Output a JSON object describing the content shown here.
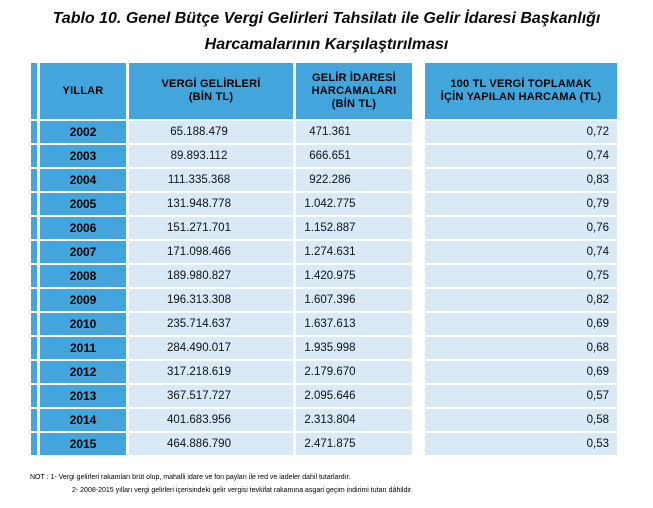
{
  "title": {
    "line1": "Tablo 10. Genel Bütçe Vergi Gelirleri Tahsilatı ile Gelir İdaresi Başkanlığı",
    "line2": "Harcamalarının Karşılaştırılması"
  },
  "table": {
    "headers": [
      "YILLAR",
      "VERGİ GELİRLERİ\n(BİN TL)",
      "GELİR İDARESİ\nHARCAMALARI\n(BİN TL)",
      "100  TL VERGİ TOPLAMAK\nİÇİN YAPILAN HARCAMA (TL)"
    ],
    "rows": [
      {
        "year": "2002",
        "vergi_gelirleri": "65.188.479",
        "gib_harcamalari": "471.361",
        "harcama_100_tl": "0,72"
      },
      {
        "year": "2003",
        "vergi_gelirleri": "89.893.112",
        "gib_harcamalari": "666.651",
        "harcama_100_tl": "0,74"
      },
      {
        "year": "2004",
        "vergi_gelirleri": "111.335.368",
        "gib_harcamalari": "922.286",
        "harcama_100_tl": "0,83"
      },
      {
        "year": "2005",
        "vergi_gelirleri": "131.948.778",
        "gib_harcamalari": "1.042.775",
        "harcama_100_tl": "0,79"
      },
      {
        "year": "2006",
        "vergi_gelirleri": "151.271.701",
        "gib_harcamalari": "1.152.887",
        "harcama_100_tl": "0,76"
      },
      {
        "year": "2007",
        "vergi_gelirleri": "171.098.466",
        "gib_harcamalari": "1.274.631",
        "harcama_100_tl": "0,74"
      },
      {
        "year": "2008",
        "vergi_gelirleri": "189.980.827",
        "gib_harcamalari": "1.420.975",
        "harcama_100_tl": "0,75"
      },
      {
        "year": "2009",
        "vergi_gelirleri": "196.313.308",
        "gib_harcamalari": "1.607.396",
        "harcama_100_tl": "0,82"
      },
      {
        "year": "2010",
        "vergi_gelirleri": "235.714.637",
        "gib_harcamalari": "1.637.613",
        "harcama_100_tl": "0,69"
      },
      {
        "year": "2011",
        "vergi_gelirleri": "284.490.017",
        "gib_harcamalari": "1.935.998",
        "harcama_100_tl": "0,68"
      },
      {
        "year": "2012",
        "vergi_gelirleri": "317.218.619",
        "gib_harcamalari": "2.179.670",
        "harcama_100_tl": "0,69"
      },
      {
        "year": "2013",
        "vergi_gelirleri": "367.517.727",
        "gib_harcamalari": "2.095.646",
        "harcama_100_tl": "0,57"
      },
      {
        "year": "2014",
        "vergi_gelirleri": "401.683.956",
        "gib_harcamalari": "2.313.804",
        "harcama_100_tl": "0,58"
      },
      {
        "year": "2015",
        "vergi_gelirleri": "464.886.790",
        "gib_harcamalari": "2.471.875",
        "harcama_100_tl": "0,53"
      }
    ]
  },
  "notes": {
    "line1": "NOT : 1-  Vergi gelirleri rakamları brüt olup, mahalli idare ve fon payları ile red ve iadeler dahil tutarlardır.",
    "line2": "2-  2008-2015 yılları vergi gelirleri içerisindeki gelir vergisi tevkifat rakamına asgari geçim indirimi tutarı dâhildir."
  },
  "colors": {
    "header_blue": "#42A6DC",
    "row_light_blue": "#D9E9F5"
  }
}
